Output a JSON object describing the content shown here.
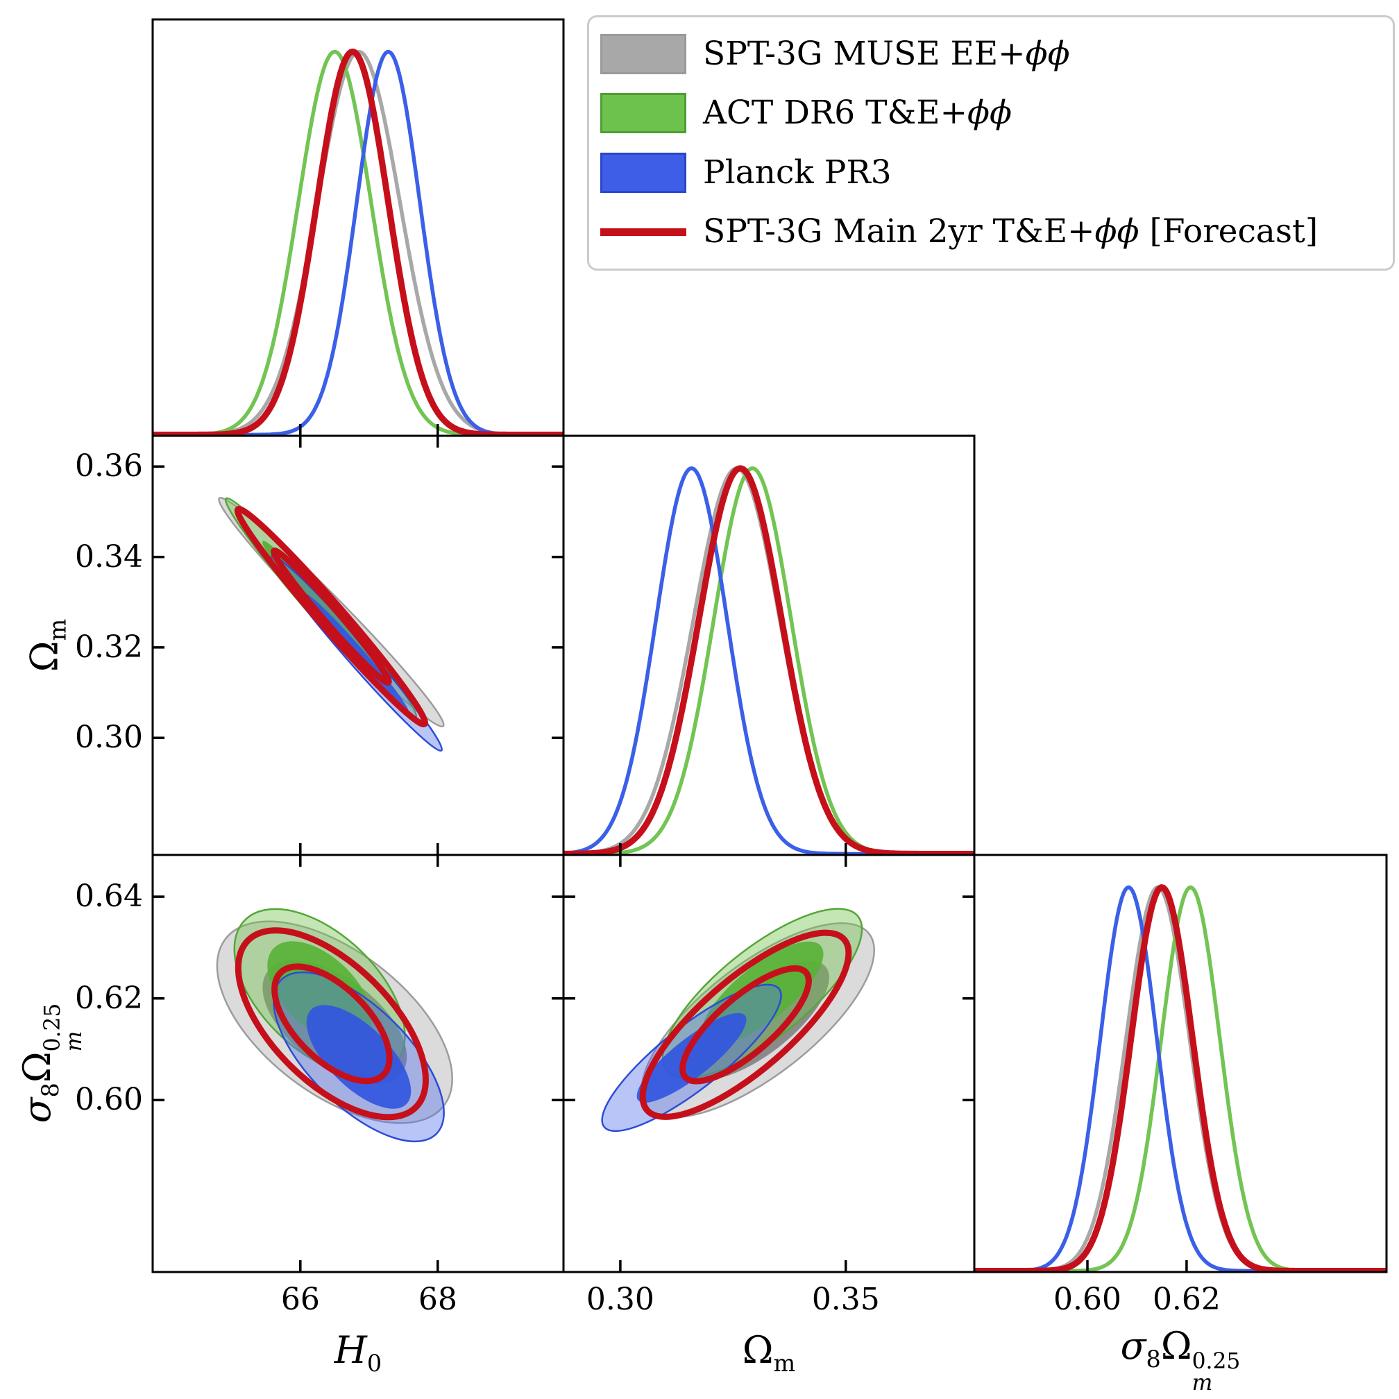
{
  "figure": {
    "background": "#ffffff",
    "description": "Corner (triangle) plot of cosmological parameter constraints: 1D marginal posteriors on the diagonal and 2D confidence contours (68% and 95%) off-diagonal"
  },
  "legend": {
    "position": "top-right",
    "border_color": "#cbcbcb"
  },
  "chart_data": {
    "type": "corner_plot",
    "grid": false,
    "legend_position": "top-right",
    "axis_titles": {
      "h0": {
        "base": "H",
        "sub": "0"
      },
      "om": {
        "base": "Ω",
        "sub": "m"
      },
      "s8": {
        "sigma": "σ",
        "sigma_sub": "8",
        "omega": "Ω",
        "omega_sub": "m",
        "omega_sup": "0.25"
      }
    },
    "parameters": [
      {
        "id": "H0",
        "tick_values": [
          66,
          68
        ],
        "tick_labels": [
          "66",
          "68"
        ],
        "x_range": [
          63.85,
          69.83
        ]
      },
      {
        "id": "Om",
        "tick_values": [
          0.3,
          0.35
        ],
        "tick_labels": [
          "0.30",
          "0.35"
        ],
        "y_tick_values": [
          0.3,
          0.32,
          0.34,
          0.36
        ],
        "y_tick_labels": [
          "0.30",
          "0.32",
          "0.34",
          "0.36"
        ],
        "x_range": [
          0.2874,
          0.3785
        ],
        "y_range": [
          0.2741,
          0.3668
        ]
      },
      {
        "id": "S8",
        "tick_values": [
          0.6,
          0.62
        ],
        "tick_labels": [
          "0.60",
          "0.62"
        ],
        "y_tick_values": [
          0.6,
          0.62,
          0.64
        ],
        "y_tick_labels": [
          "0.60",
          "0.62",
          "0.64"
        ],
        "x_range": [
          0.5772,
          0.6603
        ],
        "y_range": [
          0.5662,
          0.6482
        ]
      }
    ],
    "contour_levels_sigma_scale": [
      2.48,
      1.52
    ],
    "datasets": [
      {
        "id": "muse",
        "label_pre": "SPT-3G MUSE EE+",
        "label_math": "ϕϕ",
        "label_post": "",
        "style": "filled",
        "colors": {
          "line": "#A8A8A8",
          "fill_outer": "rgba(165,165,165,0.40)",
          "fill_inner": "rgba(118,118,118,0.80)",
          "edge": "rgba(148,148,148,0.9)",
          "legend_fill": "#A8A8A8",
          "legend_edge": "#9A9A9A"
        },
        "marginals": {
          "H0": {
            "mean": 66.85,
            "sigma": 0.6
          },
          "Om": {
            "mean": 0.3258,
            "sigma": 0.0096
          },
          "S8": {
            "mean": 0.6142,
            "sigma": 0.0064
          }
        },
        "contours": {
          "H0_Om": {
            "cx": 66.45,
            "cy": 0.3278,
            "sx": 0.66,
            "sy": 0.0102,
            "rho": -0.985
          },
          "H0_S8": {
            "cx": 66.5,
            "cy": 0.6153,
            "sx": 0.69,
            "sy": 0.008,
            "rho": -0.56
          },
          "Om_S8": {
            "cx": 0.3305,
            "cy": 0.6157,
            "sx": 0.0104,
            "sy": 0.0077,
            "rho": 0.72
          }
        }
      },
      {
        "id": "act",
        "label_pre": "ACT DR6 T&E+",
        "label_math": "ϕϕ",
        "label_post": "",
        "style": "filled",
        "colors": {
          "line": "#72C453",
          "fill_outer": "rgba(112,196,77,0.42)",
          "fill_inner": "rgba(88,178,54,0.92)",
          "edge": "#55A637",
          "legend_fill": "#6DC24D",
          "legend_edge": "#4E9E33"
        },
        "marginals": {
          "H0": {
            "mean": 66.5,
            "sigma": 0.53
          },
          "Om": {
            "mean": 0.3293,
            "sigma": 0.0086
          },
          "S8": {
            "mean": 0.6208,
            "sigma": 0.0059
          }
        },
        "contours": {
          "H0_Om": {
            "cx": 66.3,
            "cy": 0.3287,
            "sx": 0.56,
            "sy": 0.0098,
            "rho": -0.985
          },
          "H0_S8": {
            "cx": 66.28,
            "cy": 0.6212,
            "sx": 0.5,
            "sy": 0.0066,
            "rho": -0.52
          },
          "Om_S8": {
            "cx": 0.3315,
            "cy": 0.621,
            "sx": 0.0089,
            "sy": 0.0067,
            "rho": 0.76
          }
        }
      },
      {
        "id": "planck",
        "label_pre": "Planck PR3",
        "label_math": "",
        "label_post": "",
        "style": "filled",
        "colors": {
          "line": "#3A5FE8",
          "fill_outer": "rgba(88,116,236,0.42)",
          "fill_inner": "rgba(50,86,224,0.92)",
          "edge": "#2B4CD8",
          "legend_fill": "#3E5EE8",
          "legend_edge": "#2B46C9"
        },
        "marginals": {
          "H0": {
            "mean": 67.28,
            "sigma": 0.46
          },
          "Om": {
            "mean": 0.3158,
            "sigma": 0.0079
          },
          "S8": {
            "mean": 0.6083,
            "sigma": 0.0057
          }
        },
        "contours": {
          "H0_Om": {
            "cx": 66.82,
            "cy": 0.3187,
            "sx": 0.5,
            "sy": 0.0087,
            "rho": -0.985
          },
          "H0_S8": {
            "cx": 66.85,
            "cy": 0.6085,
            "sx": 0.5,
            "sy": 0.0067,
            "rho": -0.66
          },
          "Om_S8": {
            "cx": 0.3158,
            "cy": 0.6083,
            "sx": 0.008,
            "sy": 0.0058,
            "rho": 0.85
          }
        }
      },
      {
        "id": "spt2yr",
        "label_pre": "SPT-3G Main 2yr T&E+",
        "label_math": "ϕϕ",
        "label_post": " [Forecast]",
        "style": "lines",
        "colors": {
          "line": "#C5101B",
          "legend_fill": "#C5101B",
          "legend_edge": "#C5101B"
        },
        "marginals": {
          "H0": {
            "mean": 66.76,
            "sigma": 0.52
          },
          "Om": {
            "mean": 0.3266,
            "sigma": 0.0092
          },
          "S8": {
            "mean": 0.615,
            "sigma": 0.0062
          }
        },
        "contours": {
          "H0_Om": {
            "cx": 66.45,
            "cy": 0.3268,
            "sx": 0.55,
            "sy": 0.0096,
            "rho": -0.985
          },
          "H0_S8": {
            "cx": 66.46,
            "cy": 0.615,
            "sx": 0.55,
            "sy": 0.0074,
            "rho": -0.6
          },
          "Om_S8": {
            "cx": 0.3278,
            "cy": 0.6148,
            "sx": 0.0092,
            "sy": 0.0073,
            "rho": 0.78
          }
        }
      }
    ]
  }
}
